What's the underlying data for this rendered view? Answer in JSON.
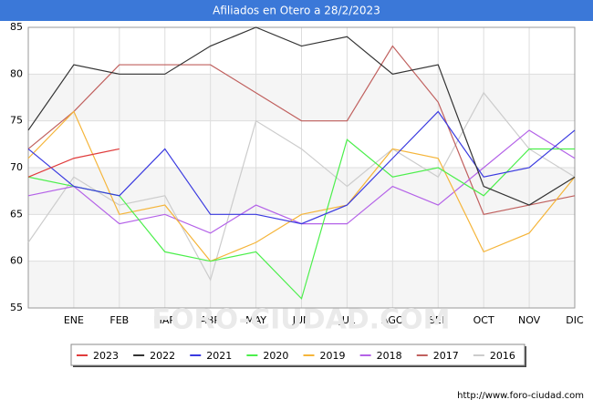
{
  "chart_data": {
    "type": "line",
    "title": "Afiliados en Otero a 28/2/2023",
    "categories": [
      null,
      "ENE",
      "FEB",
      "MAR",
      "ABR",
      "MAY",
      "JUN",
      "JUL",
      "AGO",
      "SEP",
      "OCT",
      "NOV",
      "DIC"
    ],
    "series": [
      {
        "name": "2023",
        "color": "#e03c3c",
        "values": [
          69,
          71,
          72,
          null,
          null,
          null,
          null,
          null,
          null,
          null,
          null,
          null,
          null
        ]
      },
      {
        "name": "2022",
        "color": "#333333",
        "values": [
          74,
          81,
          80,
          80,
          83,
          85,
          83,
          84,
          80,
          81,
          68,
          66,
          69
        ]
      },
      {
        "name": "2021",
        "color": "#3a3ae0",
        "values": [
          72,
          68,
          67,
          72,
          65,
          65,
          64,
          66,
          71,
          76,
          69,
          70,
          74
        ]
      },
      {
        "name": "2020",
        "color": "#4cef4c",
        "values": [
          69,
          68,
          67,
          61,
          60,
          61,
          56,
          73,
          69,
          70,
          67,
          72,
          72
        ]
      },
      {
        "name": "2019",
        "color": "#f5b53a",
        "values": [
          71,
          76,
          65,
          66,
          60,
          62,
          65,
          66,
          72,
          71,
          61,
          63,
          69
        ]
      },
      {
        "name": "2018",
        "color": "#b462e8",
        "values": [
          67,
          68,
          64,
          65,
          63,
          66,
          64,
          64,
          68,
          66,
          70,
          74,
          71
        ]
      },
      {
        "name": "2017",
        "color": "#c0605e",
        "values": [
          72,
          76,
          81,
          81,
          81,
          78,
          75,
          75,
          83,
          77,
          65,
          66,
          67
        ]
      },
      {
        "name": "2016",
        "color": "#cccccc",
        "values": [
          62,
          69,
          66,
          67,
          58,
          75,
          72,
          68,
          72,
          69,
          78,
          72,
          69
        ]
      }
    ],
    "ylim": [
      55,
      85
    ],
    "yticks": [
      55,
      60,
      65,
      70,
      75,
      80,
      85
    ],
    "grid": true,
    "watermark": "FORO-CIUDAD.COM",
    "footer": "http://www.foro-ciudad.com"
  }
}
